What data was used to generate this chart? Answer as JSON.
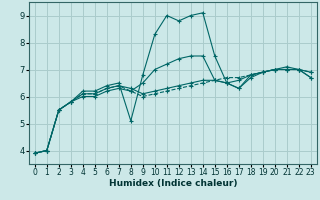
{
  "title": "",
  "xlabel": "Humidex (Indice chaleur)",
  "background_color": "#cce8e8",
  "grid_color": "#aacccc",
  "line_color": "#006666",
  "xlim": [
    -0.5,
    23.5
  ],
  "ylim": [
    3.5,
    9.5
  ],
  "xticks": [
    0,
    1,
    2,
    3,
    4,
    5,
    6,
    7,
    8,
    9,
    10,
    11,
    12,
    13,
    14,
    15,
    16,
    17,
    18,
    19,
    20,
    21,
    22,
    23
  ],
  "yticks": [
    4,
    5,
    6,
    7,
    8,
    9
  ],
  "series1_y": [
    3.9,
    4.0,
    5.5,
    5.8,
    6.1,
    6.1,
    6.3,
    6.4,
    6.2,
    6.0,
    6.1,
    6.2,
    6.3,
    6.4,
    6.5,
    6.6,
    6.7,
    6.7,
    6.8,
    6.9,
    7.0,
    7.0,
    7.0,
    6.9
  ],
  "series2_y": [
    3.9,
    4.0,
    5.5,
    5.8,
    6.2,
    6.2,
    6.4,
    6.5,
    5.1,
    6.8,
    8.3,
    9.0,
    8.8,
    9.0,
    9.1,
    7.5,
    6.5,
    6.6,
    6.8,
    6.9,
    7.0,
    7.1,
    7.0,
    6.7
  ],
  "series3_y": [
    3.9,
    4.0,
    5.5,
    5.8,
    6.1,
    6.1,
    6.3,
    6.4,
    6.3,
    6.1,
    6.2,
    6.3,
    6.4,
    6.5,
    6.6,
    6.6,
    6.5,
    6.3,
    6.7,
    6.9,
    7.0,
    7.0,
    7.0,
    6.9
  ],
  "series4_y": [
    3.9,
    4.0,
    5.5,
    5.8,
    6.0,
    6.0,
    6.2,
    6.3,
    6.2,
    6.5,
    7.0,
    7.2,
    7.4,
    7.5,
    7.5,
    6.6,
    6.5,
    6.3,
    6.8,
    6.9,
    7.0,
    7.0,
    7.0,
    6.7
  ]
}
